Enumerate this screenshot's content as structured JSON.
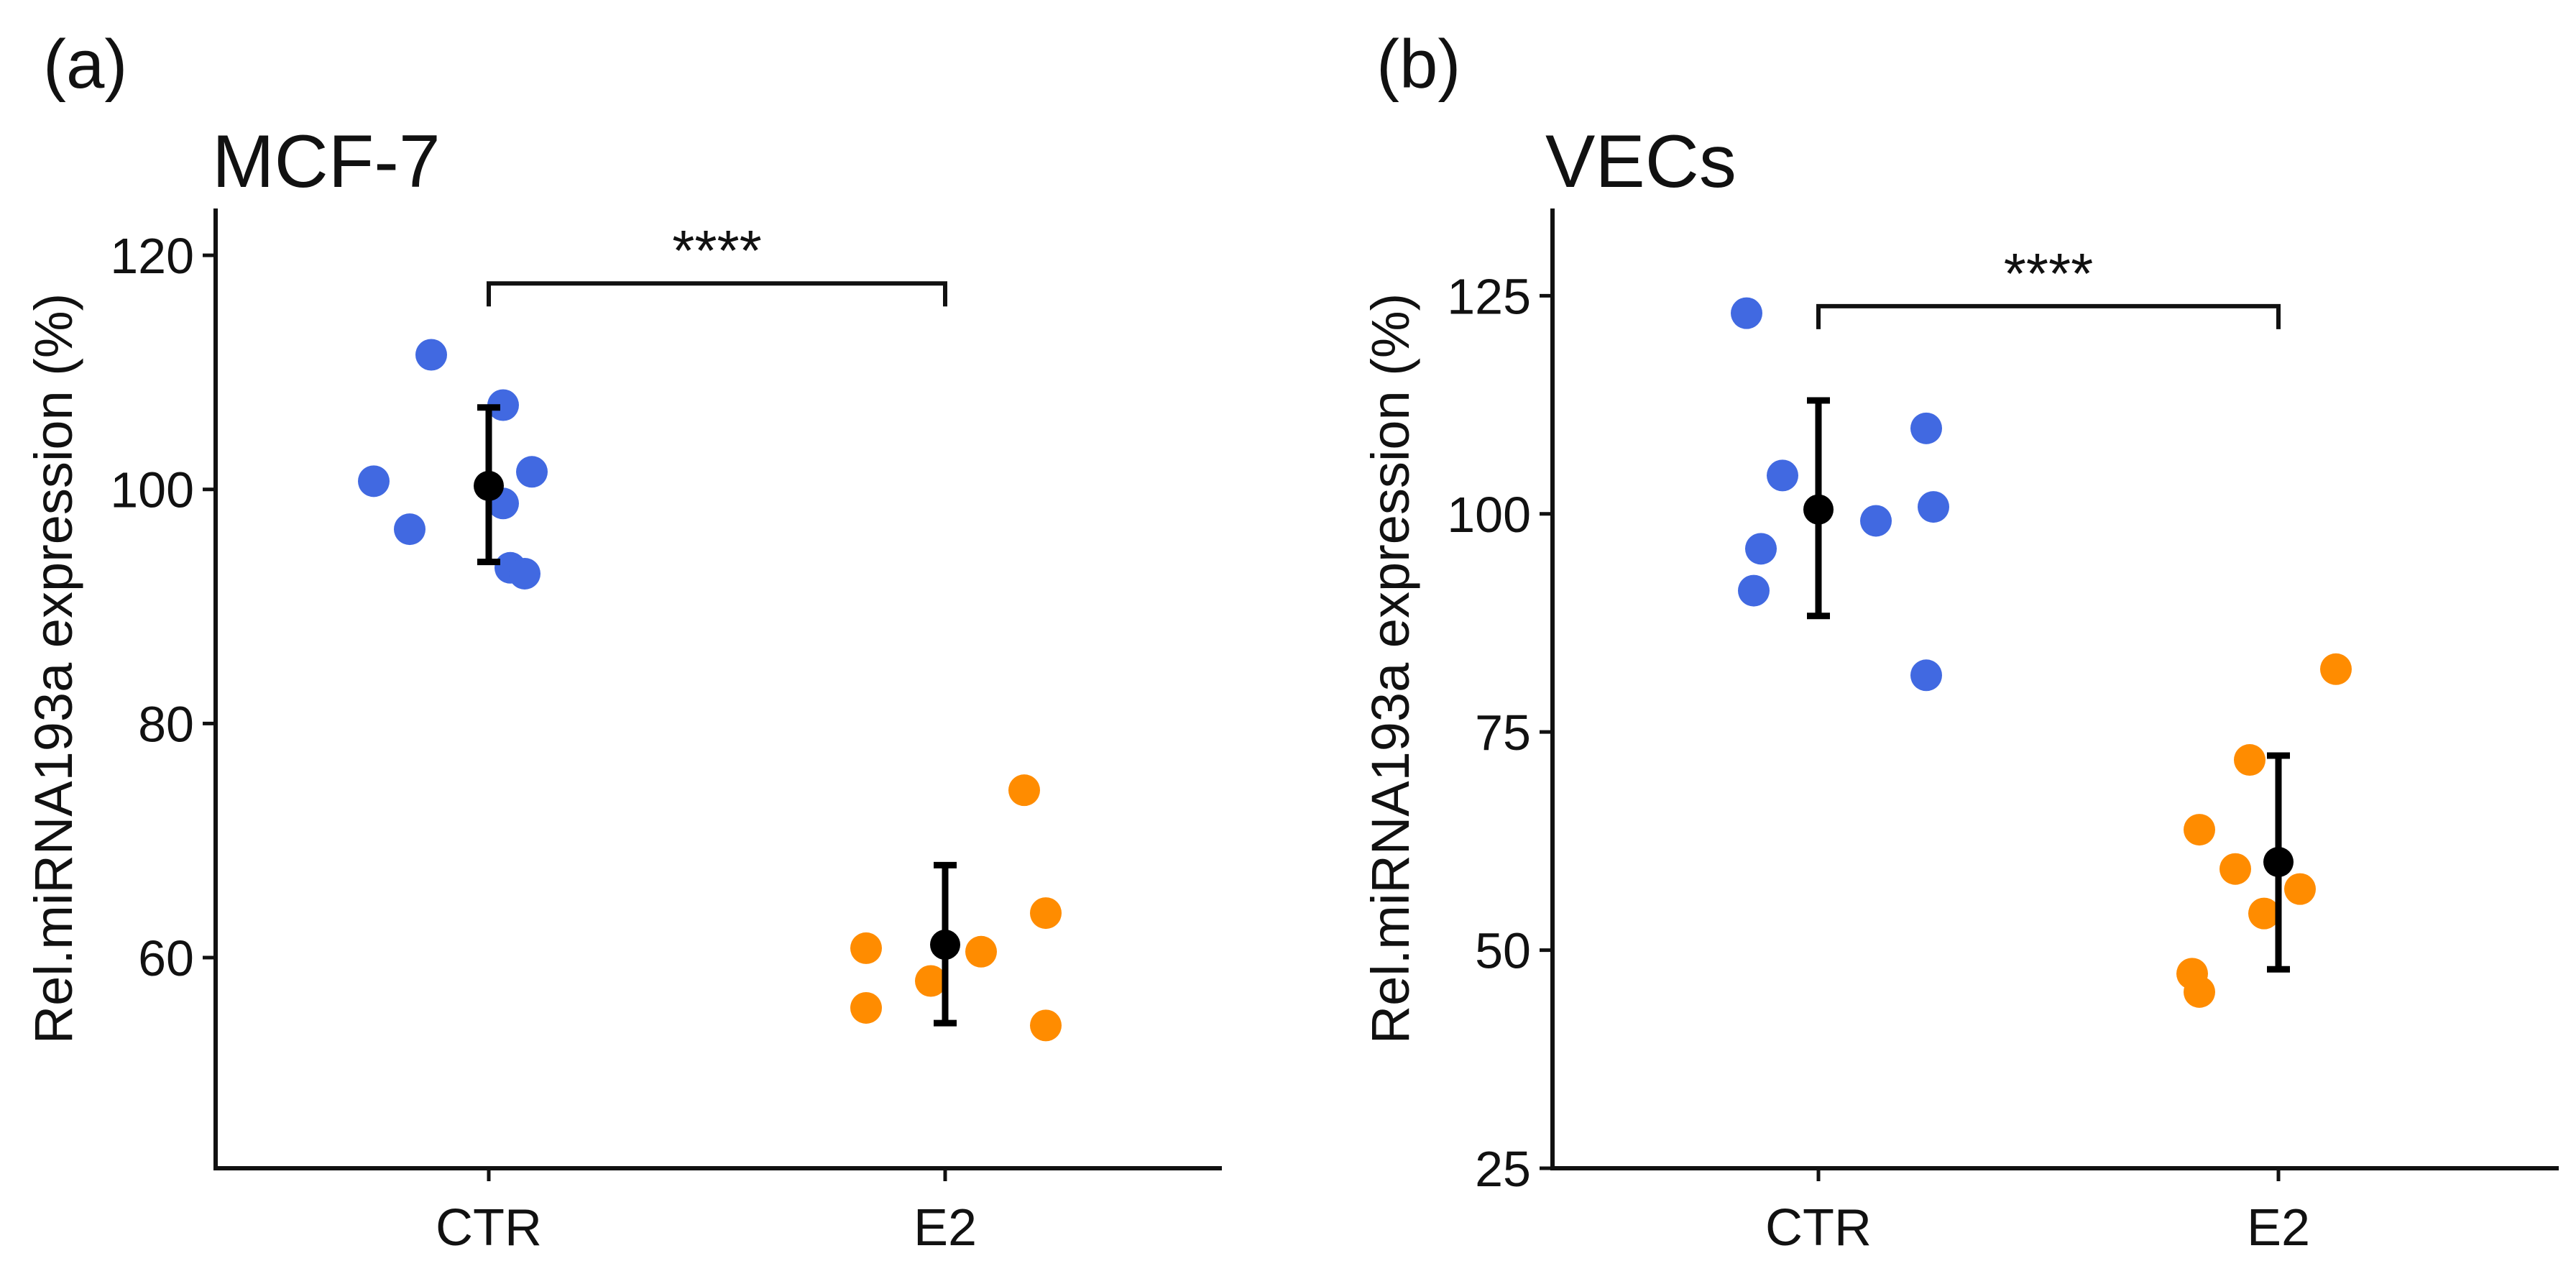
{
  "chart_data": [
    {
      "type": "scatter",
      "panel_label": "(a)",
      "title": "MCF-7",
      "xlabel": "",
      "ylabel": "Rel.miRNA193a expression (%)",
      "categories": [
        "CTR",
        "E2"
      ],
      "ylim": [
        42,
        124
      ],
      "yticks": [
        "60",
        "80",
        "100",
        "120"
      ],
      "series": [
        {
          "name": "CTR",
          "color": "#4169e1",
          "points": [
            {
              "x": -0.08,
              "y": 111.5
            },
            {
              "x": 0.02,
              "y": 107.2
            },
            {
              "x": 0.06,
              "y": 101.5
            },
            {
              "x": -0.16,
              "y": 100.7
            },
            {
              "x": 0.02,
              "y": 98.8
            },
            {
              "x": -0.11,
              "y": 96.6
            },
            {
              "x": 0.03,
              "y": 93.3
            },
            {
              "x": 0.05,
              "y": 92.8
            }
          ],
          "mean": 100.3,
          "error_low": 93.8,
          "error_high": 107.0
        },
        {
          "name": "E2",
          "color": "#ff8c00",
          "points": [
            {
              "x": 0.11,
              "y": 74.3
            },
            {
              "x": 0.14,
              "y": 63.8
            },
            {
              "x": -0.11,
              "y": 60.8
            },
            {
              "x": 0.05,
              "y": 60.5
            },
            {
              "x": -0.02,
              "y": 58.0
            },
            {
              "x": -0.11,
              "y": 55.7
            },
            {
              "x": 0.14,
              "y": 54.2
            }
          ],
          "mean": 61.1,
          "error_low": 54.4,
          "error_high": 67.9
        }
      ],
      "significance": {
        "from": "CTR",
        "to": "E2",
        "label": "****",
        "y": 117.6
      }
    },
    {
      "type": "scatter",
      "panel_label": "(b)",
      "title": "VECs",
      "xlabel": "",
      "ylabel": "Rel.miRNA193a expression (%)",
      "categories": [
        "CTR",
        "E2"
      ],
      "ylim": [
        25,
        135
      ],
      "yticks": [
        "25",
        "50",
        "75",
        "100",
        "125"
      ],
      "series": [
        {
          "name": "CTR",
          "color": "#4169e1",
          "points": [
            {
              "x": -0.1,
              "y": 123.0
            },
            {
              "x": 0.15,
              "y": 109.8
            },
            {
              "x": -0.05,
              "y": 104.4
            },
            {
              "x": 0.16,
              "y": 100.8
            },
            {
              "x": 0.08,
              "y": 99.2
            },
            {
              "x": -0.08,
              "y": 96.0
            },
            {
              "x": -0.09,
              "y": 91.2
            },
            {
              "x": 0.15,
              "y": 81.5
            }
          ],
          "mean": 100.5,
          "error_low": 88.3,
          "error_high": 113.0
        },
        {
          "name": "E2",
          "color": "#ff8c00",
          "points": [
            {
              "x": 0.08,
              "y": 82.2
            },
            {
              "x": -0.04,
              "y": 71.8
            },
            {
              "x": -0.11,
              "y": 63.8
            },
            {
              "x": -0.06,
              "y": 59.3
            },
            {
              "x": 0.03,
              "y": 57.0
            },
            {
              "x": -0.02,
              "y": 54.2
            },
            {
              "x": -0.12,
              "y": 47.3
            },
            {
              "x": -0.11,
              "y": 45.2
            }
          ],
          "mean": 60.1,
          "error_low": 47.8,
          "error_high": 72.3
        }
      ],
      "significance": {
        "from": "CTR",
        "to": "E2",
        "label": "****",
        "y": 123.8
      }
    }
  ]
}
